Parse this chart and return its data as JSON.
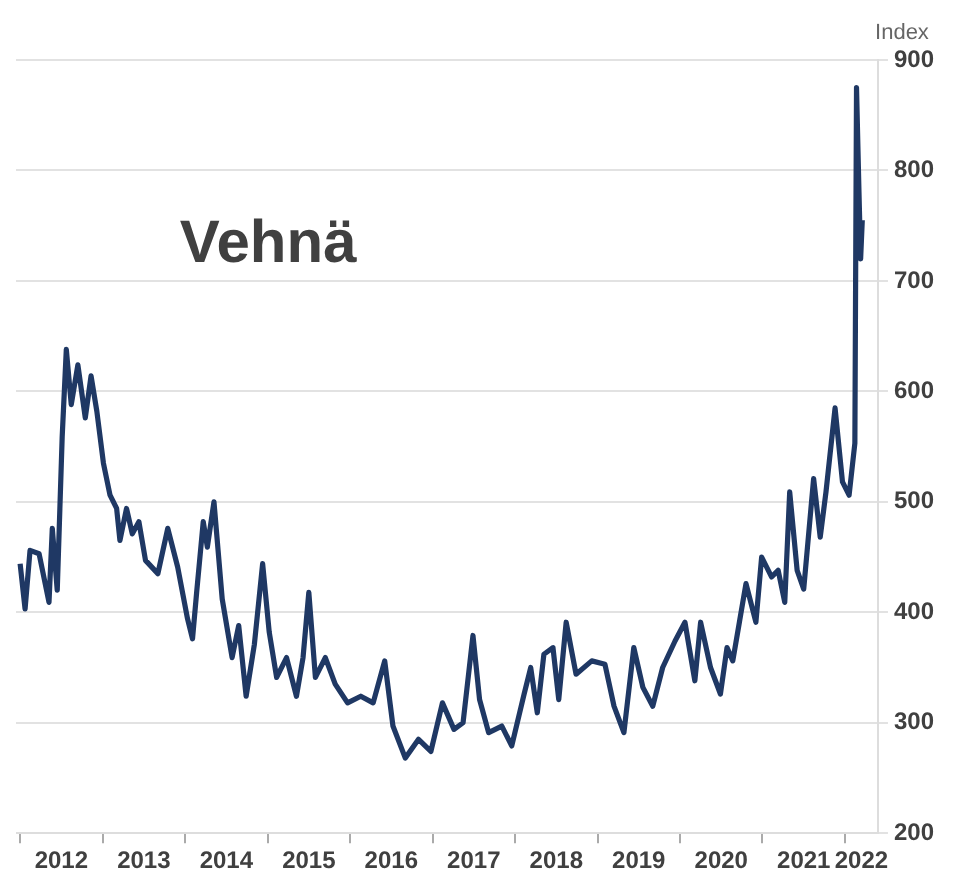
{
  "chart_data": {
    "type": "line",
    "title": "Vehnä",
    "ylabel": "Index",
    "series": [
      {
        "color": "#1f3864",
        "x": [
          2012.0,
          2012.06,
          2012.12,
          2012.23,
          2012.35,
          2012.39,
          2012.45,
          2012.51,
          2012.56,
          2012.62,
          2012.7,
          2012.79,
          2012.86,
          2012.93,
          2013.01,
          2013.09,
          2013.17,
          2013.21,
          2013.29,
          2013.36,
          2013.44,
          2013.52,
          2013.67,
          2013.79,
          2013.91,
          2014.03,
          2014.09,
          2014.14,
          2014.22,
          2014.27,
          2014.35,
          2014.45,
          2014.57,
          2014.65,
          2014.74,
          2014.84,
          2014.94,
          2015.02,
          2015.11,
          2015.23,
          2015.35,
          2015.43,
          2015.5,
          2015.58,
          2015.7,
          2015.82,
          2015.97,
          2016.13,
          2016.28,
          2016.42,
          2016.52,
          2016.67,
          2016.83,
          2016.98,
          2017.12,
          2017.26,
          2017.37,
          2017.49,
          2017.57,
          2017.68,
          2017.84,
          2017.96,
          2018.11,
          2018.19,
          2018.27,
          2018.35,
          2018.46,
          2018.53,
          2018.62,
          2018.74,
          2018.93,
          2019.09,
          2019.2,
          2019.32,
          2019.44,
          2019.55,
          2019.67,
          2019.79,
          2019.94,
          2020.06,
          2020.18,
          2020.25,
          2020.37,
          2020.49,
          2020.57,
          2020.64,
          2020.72,
          2020.8,
          2020.92,
          2020.99,
          2021.11,
          2021.19,
          2021.27,
          2021.33,
          2021.42,
          2021.5,
          2021.62,
          2021.7,
          2021.77,
          2021.88,
          2021.97,
          2022.05,
          2022.12,
          2022.14,
          2022.17,
          2022.19,
          2022.21
        ],
        "values": [
          444,
          403,
          456,
          453,
          409,
          476,
          420,
          559,
          638,
          588,
          624,
          576,
          614,
          582,
          535,
          506,
          494,
          465,
          494,
          471,
          482,
          447,
          435,
          476,
          441,
          394,
          376,
          418,
          482,
          459,
          500,
          412,
          359,
          388,
          324,
          371,
          444,
          382,
          341,
          359,
          324,
          359,
          418,
          341,
          359,
          335,
          318,
          324,
          318,
          356,
          297,
          268,
          285,
          274,
          318,
          294,
          300,
          379,
          321,
          291,
          297,
          279,
          326,
          350,
          309,
          362,
          368,
          321,
          391,
          344,
          356,
          353,
          315,
          291,
          368,
          332,
          315,
          350,
          374,
          391,
          338,
          391,
          350,
          326,
          368,
          356,
          391,
          426,
          391,
          450,
          432,
          438,
          409,
          509,
          438,
          421,
          521,
          468,
          509,
          585,
          518,
          506,
          553,
          875,
          780,
          720,
          755
        ]
      }
    ],
    "xlim": [
      2011.95,
      2022.4
    ],
    "xticks": [
      {
        "value": 2012,
        "label": null
      },
      {
        "value": 2012.5,
        "label": "2012"
      },
      {
        "value": 2013,
        "label": null
      },
      {
        "value": 2013.5,
        "label": "2013"
      },
      {
        "value": 2014,
        "label": null
      },
      {
        "value": 2014.5,
        "label": "2014"
      },
      {
        "value": 2015,
        "label": null
      },
      {
        "value": 2015.5,
        "label": "2015"
      },
      {
        "value": 2016,
        "label": null
      },
      {
        "value": 2016.5,
        "label": "2016"
      },
      {
        "value": 2017,
        "label": null
      },
      {
        "value": 2017.5,
        "label": "2017"
      },
      {
        "value": 2018,
        "label": null
      },
      {
        "value": 2018.5,
        "label": "2018"
      },
      {
        "value": 2019,
        "label": null
      },
      {
        "value": 2019.5,
        "label": "2019"
      },
      {
        "value": 2020,
        "label": null
      },
      {
        "value": 2020.5,
        "label": "2020"
      },
      {
        "value": 2021,
        "label": null
      },
      {
        "value": 2021.5,
        "label": "2021"
      },
      {
        "value": 2022,
        "label": null
      },
      {
        "value": 2022.2,
        "label": "2022"
      }
    ],
    "ylim": [
      200,
      900
    ],
    "yticks": [
      200,
      300,
      400,
      500,
      600,
      700,
      800,
      900
    ],
    "grid": "y",
    "legend": false,
    "marker": "none",
    "line_style": "solid"
  }
}
